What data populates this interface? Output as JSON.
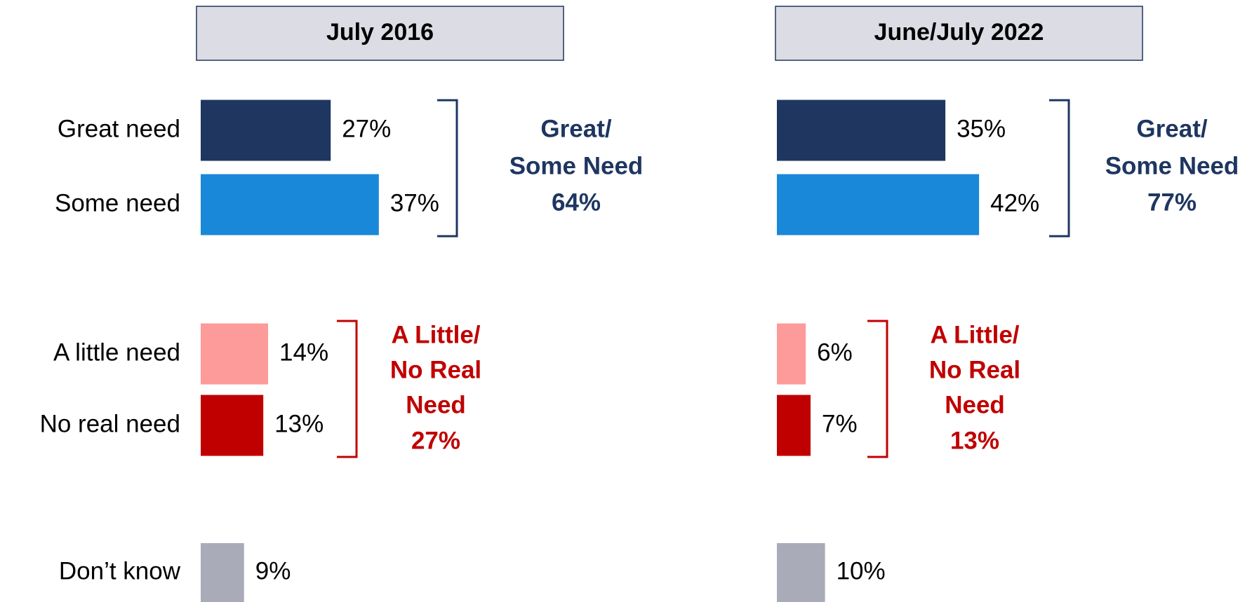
{
  "chart_data": {
    "type": "bar",
    "categories": [
      "Great need",
      "Some need",
      "A little need",
      "No real need",
      "Don’t know"
    ],
    "colors": [
      "#1e3660",
      "#1a88d8",
      "#fd9a9a",
      "#c00000",
      "#a9abb8"
    ],
    "series": [
      {
        "name": "July 2016",
        "values": [
          27,
          37,
          14,
          13,
          9
        ],
        "value_labels": [
          "27%",
          "37%",
          "14%",
          "13%",
          "9%"
        ],
        "annotations": [
          {
            "lines": [
              "Great/",
              "Some Need"
            ],
            "value": 64,
            "value_label": "64%",
            "color": "#1e3660"
          },
          {
            "lines": [
              "A Little/",
              "No Real",
              "Need"
            ],
            "value": 27,
            "value_label": "27%",
            "color": "#c00000"
          }
        ]
      },
      {
        "name": "June/July 2022",
        "values": [
          35,
          42,
          6,
          7,
          10
        ],
        "value_labels": [
          "35%",
          "42%",
          "6%",
          "7%",
          "10%"
        ],
        "annotations": [
          {
            "lines": [
              "Great/",
              "Some Need"
            ],
            "value": 77,
            "value_label": "77%",
            "color": "#1e3660"
          },
          {
            "lines": [
              "A Little/",
              "No Real",
              "Need"
            ],
            "value": 13,
            "value_label": "13%",
            "color": "#c00000"
          }
        ]
      }
    ]
  }
}
